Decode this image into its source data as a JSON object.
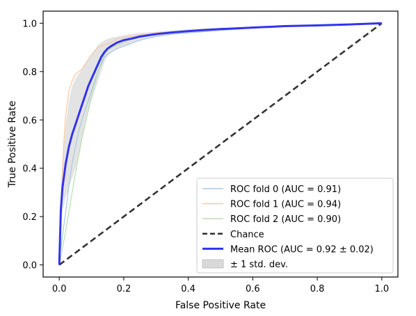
{
  "chart_data": {
    "type": "line",
    "title": "",
    "xlabel": "False Positive Rate",
    "ylabel": "True Positive Rate",
    "xlim": [
      -0.05,
      1.05
    ],
    "ylim": [
      -0.05,
      1.05
    ],
    "xticks": [
      "0.0",
      "0.2",
      "0.4",
      "0.6",
      "0.8",
      "1.0"
    ],
    "yticks": [
      "0.0",
      "0.2",
      "0.4",
      "0.6",
      "0.8",
      "1.0"
    ],
    "xtick_values": [
      0,
      0.2,
      0.4,
      0.6,
      0.8,
      1.0
    ],
    "ytick_values": [
      0,
      0.2,
      0.4,
      0.6,
      0.8,
      1.0
    ],
    "legend_position": "lower right",
    "grid": false,
    "series": [
      {
        "name": "ROC fold 0 (AUC = 0.91)",
        "color": "#a6c8e8",
        "style": "thin",
        "x": [
          0,
          0.003,
          0.01,
          0.02,
          0.03,
          0.04,
          0.05,
          0.06,
          0.07,
          0.08,
          0.09,
          0.1,
          0.11,
          0.12,
          0.13,
          0.14,
          0.15,
          0.16,
          0.18,
          0.2,
          0.22,
          0.25,
          0.3,
          0.35,
          0.4,
          0.45,
          0.5,
          0.55,
          0.6,
          0.65,
          0.7,
          0.8,
          0.9,
          1.0
        ],
        "y": [
          0,
          0.05,
          0.12,
          0.22,
          0.33,
          0.42,
          0.49,
          0.55,
          0.6,
          0.64,
          0.68,
          0.72,
          0.76,
          0.8,
          0.83,
          0.86,
          0.87,
          0.88,
          0.895,
          0.905,
          0.915,
          0.93,
          0.945,
          0.955,
          0.96,
          0.965,
          0.97,
          0.975,
          0.98,
          0.985,
          0.988,
          0.99,
          0.995,
          1.0
        ]
      },
      {
        "name": "ROC fold 1 (AUC = 0.94)",
        "color": "#f8c6a0",
        "style": "thin",
        "x": [
          0,
          0.003,
          0.008,
          0.015,
          0.02,
          0.03,
          0.04,
          0.05,
          0.06,
          0.07,
          0.08,
          0.1,
          0.12,
          0.14,
          0.16,
          0.18,
          0.2,
          0.25,
          0.3,
          0.35,
          0.4,
          0.45,
          0.5,
          0.55,
          0.6,
          0.65,
          0.7,
          0.8,
          0.9,
          1.0
        ],
        "y": [
          0,
          0.15,
          0.35,
          0.52,
          0.62,
          0.72,
          0.76,
          0.79,
          0.8,
          0.81,
          0.83,
          0.87,
          0.9,
          0.91,
          0.92,
          0.935,
          0.94,
          0.95,
          0.96,
          0.965,
          0.97,
          0.975,
          0.978,
          0.98,
          0.982,
          0.985,
          0.988,
          0.99,
          0.995,
          1.0
        ]
      },
      {
        "name": "ROC fold 2 (AUC = 0.90)",
        "color": "#b8e0b0",
        "style": "thin",
        "x": [
          0,
          0.005,
          0.01,
          0.02,
          0.03,
          0.04,
          0.05,
          0.06,
          0.07,
          0.08,
          0.09,
          0.1,
          0.11,
          0.12,
          0.13,
          0.14,
          0.15,
          0.17,
          0.2,
          0.22,
          0.25,
          0.3,
          0.35,
          0.4,
          0.45,
          0.5,
          0.55,
          0.6,
          0.7,
          0.8,
          0.9,
          1.0
        ],
        "y": [
          0,
          0.03,
          0.07,
          0.14,
          0.22,
          0.3,
          0.38,
          0.45,
          0.52,
          0.58,
          0.64,
          0.7,
          0.75,
          0.8,
          0.84,
          0.87,
          0.89,
          0.905,
          0.92,
          0.935,
          0.945,
          0.955,
          0.965,
          0.97,
          0.975,
          0.978,
          0.98,
          0.982,
          0.986,
          0.99,
          0.995,
          1.0
        ]
      },
      {
        "name": "Chance",
        "color": "#333333",
        "style": "dashed",
        "x": [
          0,
          1
        ],
        "y": [
          0,
          1
        ]
      },
      {
        "name": "Mean ROC (AUC = 0.92 ± 0.02)",
        "color": "#3333ee",
        "style": "bold",
        "x": [
          0,
          0.005,
          0.01,
          0.02,
          0.03,
          0.04,
          0.05,
          0.06,
          0.07,
          0.08,
          0.09,
          0.1,
          0.11,
          0.12,
          0.13,
          0.14,
          0.15,
          0.16,
          0.18,
          0.2,
          0.22,
          0.25,
          0.3,
          0.35,
          0.4,
          0.45,
          0.5,
          0.55,
          0.6,
          0.65,
          0.7,
          0.8,
          0.9,
          1.0
        ],
        "y": [
          0,
          0.23,
          0.32,
          0.42,
          0.49,
          0.54,
          0.58,
          0.62,
          0.66,
          0.7,
          0.74,
          0.77,
          0.8,
          0.83,
          0.86,
          0.88,
          0.895,
          0.905,
          0.92,
          0.93,
          0.935,
          0.945,
          0.955,
          0.962,
          0.967,
          0.972,
          0.976,
          0.979,
          0.982,
          0.985,
          0.988,
          0.991,
          0.995,
          1.0
        ]
      }
    ],
    "band": {
      "name": "± 1 std. dev.",
      "color": "#d9d9d9",
      "x": [
        0,
        0.005,
        0.01,
        0.02,
        0.03,
        0.04,
        0.05,
        0.06,
        0.07,
        0.08,
        0.09,
        0.1,
        0.11,
        0.12,
        0.13,
        0.14,
        0.15,
        0.16,
        0.18,
        0.2,
        0.22,
        0.25,
        0.3,
        0.35,
        0.4,
        0.45,
        0.5,
        0.55,
        0.6,
        0.65,
        0.7,
        0.8,
        0.9,
        1.0
      ],
      "upper": [
        0,
        0.3,
        0.42,
        0.58,
        0.68,
        0.74,
        0.77,
        0.79,
        0.81,
        0.83,
        0.85,
        0.87,
        0.89,
        0.91,
        0.92,
        0.93,
        0.935,
        0.94,
        0.945,
        0.95,
        0.955,
        0.96,
        0.965,
        0.97,
        0.975,
        0.978,
        0.98,
        0.983,
        0.985,
        0.988,
        0.99,
        0.993,
        0.997,
        1.0
      ],
      "lower": [
        0,
        0.16,
        0.22,
        0.28,
        0.32,
        0.36,
        0.4,
        0.45,
        0.52,
        0.58,
        0.63,
        0.68,
        0.72,
        0.76,
        0.8,
        0.84,
        0.865,
        0.88,
        0.895,
        0.905,
        0.915,
        0.93,
        0.945,
        0.955,
        0.96,
        0.966,
        0.972,
        0.975,
        0.979,
        0.982,
        0.986,
        0.989,
        0.993,
        1.0
      ]
    }
  }
}
